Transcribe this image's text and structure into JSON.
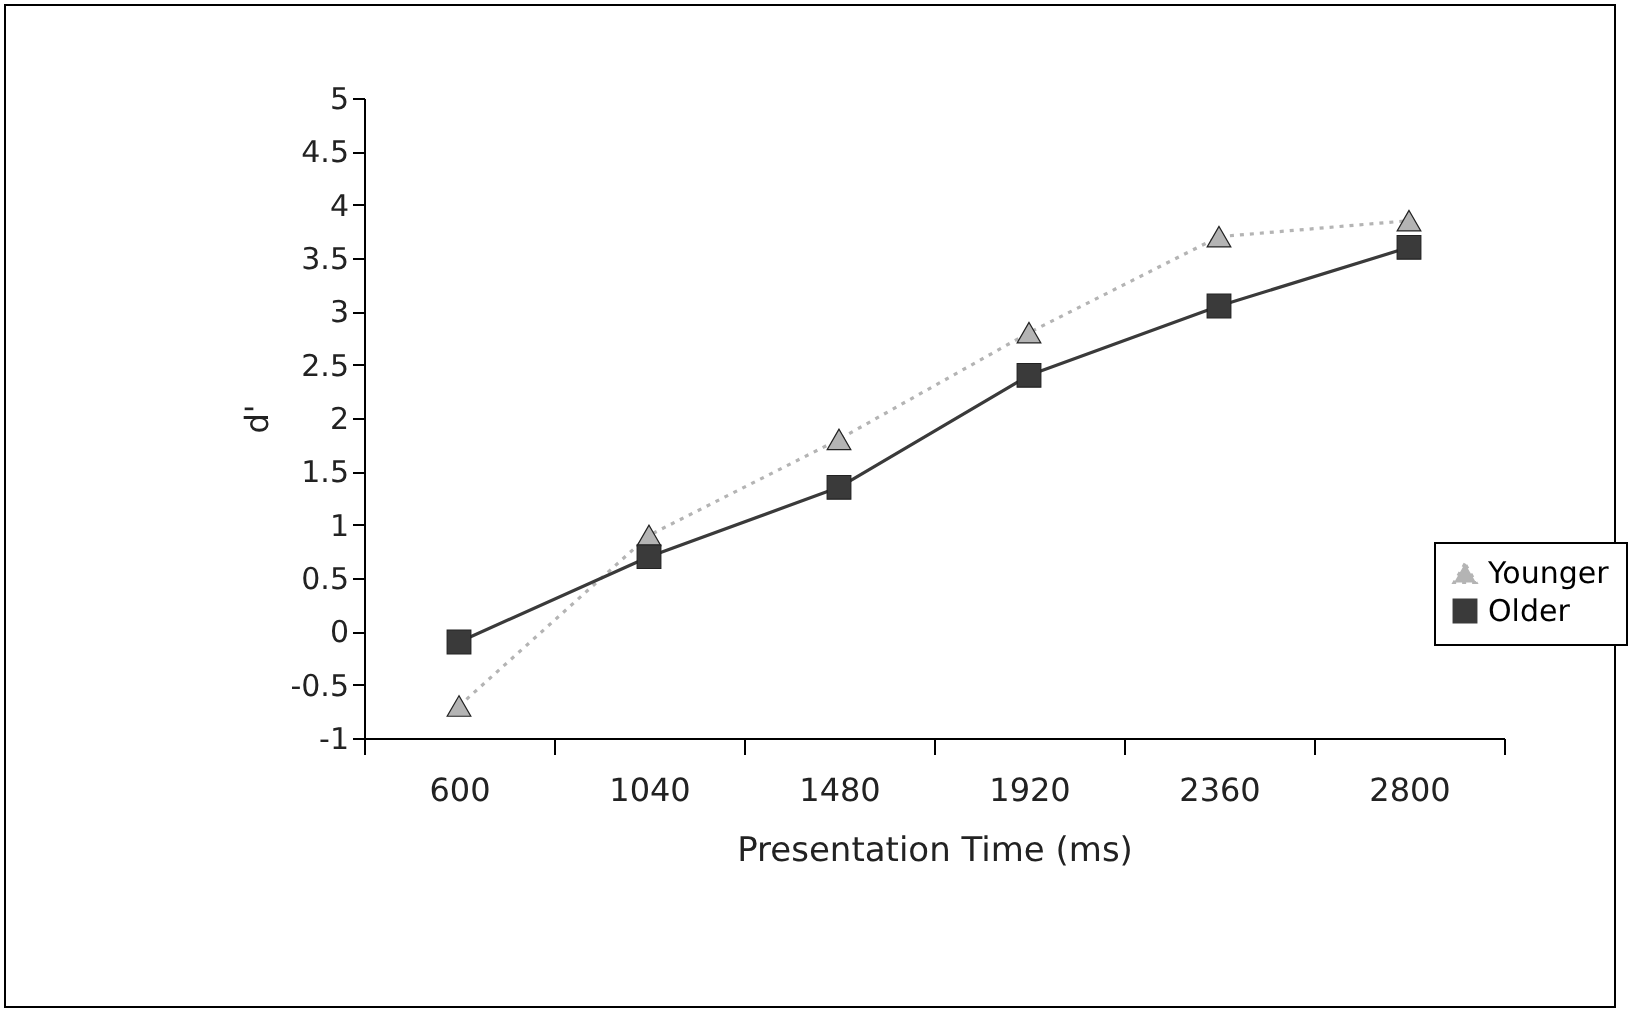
{
  "chart_data": {
    "type": "line",
    "xlabel": "Presentation Time (ms)",
    "ylabel": "d'",
    "categories": [
      "600",
      "1040",
      "1480",
      "1920",
      "2360",
      "2800"
    ],
    "series": [
      {
        "name": "Younger",
        "color": "#b4b4b4",
        "marker": "triangle",
        "line_style": "dotted",
        "values": [
          -0.7,
          0.9,
          1.8,
          2.8,
          3.7,
          3.85
        ]
      },
      {
        "name": "Older",
        "color": "#3a3a3a",
        "marker": "square",
        "line_style": "solid",
        "values": [
          -0.1,
          0.7,
          1.35,
          2.4,
          3.05,
          3.6
        ]
      }
    ],
    "ylim": [
      -1,
      5
    ],
    "yticks": [
      -1,
      -0.5,
      0,
      0.5,
      1,
      1.5,
      2,
      2.5,
      3,
      3.5,
      4,
      4.5,
      5
    ],
    "grid": false,
    "legend": "right"
  }
}
